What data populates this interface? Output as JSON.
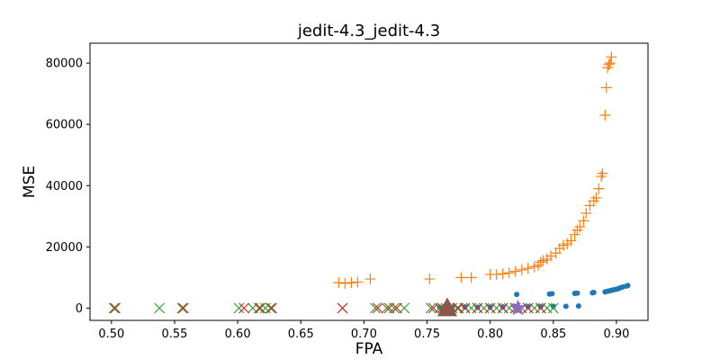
{
  "chart_data": {
    "type": "scatter",
    "title": "jedit-4.3_jedit-4.3",
    "xlabel": "FPA",
    "ylabel": "MSE",
    "xlim": [
      0.483,
      0.925
    ],
    "ylim": [
      -4000,
      86500
    ],
    "xticks": [
      0.5,
      0.55,
      0.6,
      0.65,
      0.7,
      0.75,
      0.8,
      0.85,
      0.9
    ],
    "xtick_labels": [
      "0.50",
      "0.55",
      "0.60",
      "0.65",
      "0.70",
      "0.75",
      "0.80",
      "0.85",
      "0.90"
    ],
    "yticks": [
      0,
      20000,
      40000,
      60000,
      80000
    ],
    "ytick_labels": [
      "0",
      "20000",
      "40000",
      "60000",
      "80000"
    ],
    "grid": false,
    "series": [
      {
        "marker": "circle",
        "color": "#1f77b4",
        "points": [
          [
            0.821,
            4500
          ],
          [
            0.847,
            4600
          ],
          [
            0.849,
            4700
          ],
          [
            0.867,
            4800
          ],
          [
            0.869,
            4900
          ],
          [
            0.881,
            5000
          ],
          [
            0.882,
            5100
          ],
          [
            0.891,
            5300
          ],
          [
            0.893,
            5500
          ],
          [
            0.895,
            5700
          ],
          [
            0.897,
            5900
          ],
          [
            0.899,
            6100
          ],
          [
            0.901,
            6300
          ],
          [
            0.903,
            6600
          ],
          [
            0.905,
            6900
          ],
          [
            0.908,
            7200
          ],
          [
            0.909,
            7400
          ],
          [
            0.76,
            300
          ],
          [
            0.77,
            300
          ],
          [
            0.78,
            400
          ],
          [
            0.79,
            300
          ],
          [
            0.8,
            400
          ],
          [
            0.81,
            400
          ],
          [
            0.82,
            500
          ],
          [
            0.83,
            500
          ],
          [
            0.84,
            500
          ],
          [
            0.85,
            600
          ],
          [
            0.86,
            600
          ],
          [
            0.87,
            700
          ]
        ]
      },
      {
        "marker": "plus",
        "color": "#ff7f0e",
        "points": [
          [
            0.68,
            8300
          ],
          [
            0.685,
            8100
          ],
          [
            0.69,
            8300
          ],
          [
            0.695,
            8500
          ],
          [
            0.705,
            9500
          ],
          [
            0.752,
            9500
          ],
          [
            0.777,
            10000
          ],
          [
            0.785,
            10000
          ],
          [
            0.8,
            11000
          ],
          [
            0.805,
            11000
          ],
          [
            0.81,
            11200
          ],
          [
            0.815,
            11500
          ],
          [
            0.82,
            12000
          ],
          [
            0.825,
            12500
          ],
          [
            0.83,
            13000
          ],
          [
            0.835,
            13500
          ],
          [
            0.838,
            14000
          ],
          [
            0.84,
            15000
          ],
          [
            0.842,
            15500
          ],
          [
            0.845,
            16000
          ],
          [
            0.848,
            17000
          ],
          [
            0.852,
            18000
          ],
          [
            0.855,
            19500
          ],
          [
            0.858,
            20500
          ],
          [
            0.861,
            21000
          ],
          [
            0.864,
            22000
          ],
          [
            0.867,
            24000
          ],
          [
            0.869,
            25500
          ],
          [
            0.871,
            26500
          ],
          [
            0.874,
            28500
          ],
          [
            0.876,
            31000
          ],
          [
            0.879,
            33500
          ],
          [
            0.882,
            35000
          ],
          [
            0.884,
            36000
          ],
          [
            0.886,
            39000
          ],
          [
            0.888,
            43000
          ],
          [
            0.889,
            44000
          ],
          [
            0.891,
            63000
          ],
          [
            0.892,
            72000
          ],
          [
            0.893,
            78500
          ],
          [
            0.894,
            79500
          ],
          [
            0.895,
            80000
          ],
          [
            0.896,
            82000
          ]
        ]
      },
      {
        "marker": "x",
        "color": "#2ca02c",
        "points": [
          [
            0.502,
            0
          ],
          [
            0.538,
            0
          ],
          [
            0.556,
            0
          ],
          [
            0.601,
            0
          ],
          [
            0.612,
            0
          ],
          [
            0.618,
            0
          ],
          [
            0.622,
            0
          ],
          [
            0.626,
            0
          ],
          [
            0.683,
            0
          ],
          [
            0.709,
            0
          ],
          [
            0.718,
            0
          ],
          [
            0.724,
            0
          ],
          [
            0.732,
            0
          ],
          [
            0.753,
            0
          ],
          [
            0.76,
            0
          ],
          [
            0.765,
            0
          ],
          [
            0.77,
            0
          ],
          [
            0.775,
            0
          ],
          [
            0.78,
            0
          ],
          [
            0.785,
            0
          ],
          [
            0.79,
            0
          ],
          [
            0.795,
            0
          ],
          [
            0.8,
            0
          ],
          [
            0.805,
            0
          ],
          [
            0.81,
            0
          ],
          [
            0.815,
            0
          ],
          [
            0.82,
            0
          ],
          [
            0.825,
            0
          ],
          [
            0.83,
            0
          ],
          [
            0.835,
            0
          ],
          [
            0.84,
            0
          ],
          [
            0.845,
            0
          ],
          [
            0.85,
            0
          ]
        ]
      },
      {
        "marker": "x",
        "color": "#d62728",
        "points": [
          [
            0.503,
            0
          ],
          [
            0.557,
            0
          ],
          [
            0.605,
            0
          ],
          [
            0.617,
            0
          ],
          [
            0.627,
            0
          ],
          [
            0.683,
            0
          ],
          [
            0.711,
            0
          ],
          [
            0.72,
            0
          ],
          [
            0.726,
            0
          ],
          [
            0.755,
            0
          ],
          [
            0.762,
            0
          ],
          [
            0.768,
            0
          ],
          [
            0.774,
            0
          ],
          [
            0.78,
            0
          ],
          [
            0.79,
            0
          ],
          [
            0.8,
            0
          ],
          [
            0.81,
            0
          ],
          [
            0.82,
            0
          ],
          [
            0.83,
            0
          ],
          [
            0.84,
            0
          ]
        ]
      },
      {
        "marker": "triangle",
        "color": "#8c564b",
        "points": [
          [
            0.766,
            0
          ]
        ]
      },
      {
        "marker": "star",
        "color": "#9467bd",
        "points": [
          [
            0.822,
            0
          ]
        ]
      }
    ]
  }
}
